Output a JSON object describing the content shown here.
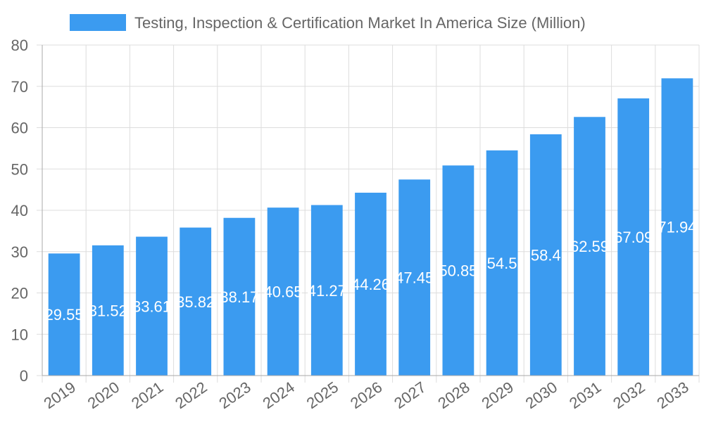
{
  "chart_data": {
    "type": "bar",
    "title": "",
    "xlabel": "",
    "ylabel": "",
    "categories": [
      "2019",
      "2020",
      "2021",
      "2022",
      "2023",
      "2024",
      "2025",
      "2026",
      "2027",
      "2028",
      "2029",
      "2030",
      "2031",
      "2032",
      "2033"
    ],
    "series": [
      {
        "name": "Testing, Inspection & Certification Market In America Size (Million)",
        "values": [
          29.55,
          31.52,
          33.61,
          35.82,
          38.17,
          40.65,
          41.27,
          44.26,
          47.45,
          50.85,
          54.5,
          58.4,
          62.59,
          67.09,
          71.94
        ],
        "color": "#3b9bf0"
      }
    ],
    "data_labels": [
      "29.55",
      "31.52",
      "33.61",
      "35.82",
      "38.17",
      "40.65",
      "41.27",
      "44.26",
      "47.45",
      "50.85",
      "54.5",
      "58.4",
      "62.59",
      "67.09",
      "71.94"
    ],
    "ylim": [
      0,
      80
    ],
    "yticks": [
      "0",
      "10",
      "20",
      "30",
      "40",
      "50",
      "60",
      "70",
      "80"
    ],
    "grid": true,
    "legend_position": "top-center"
  }
}
